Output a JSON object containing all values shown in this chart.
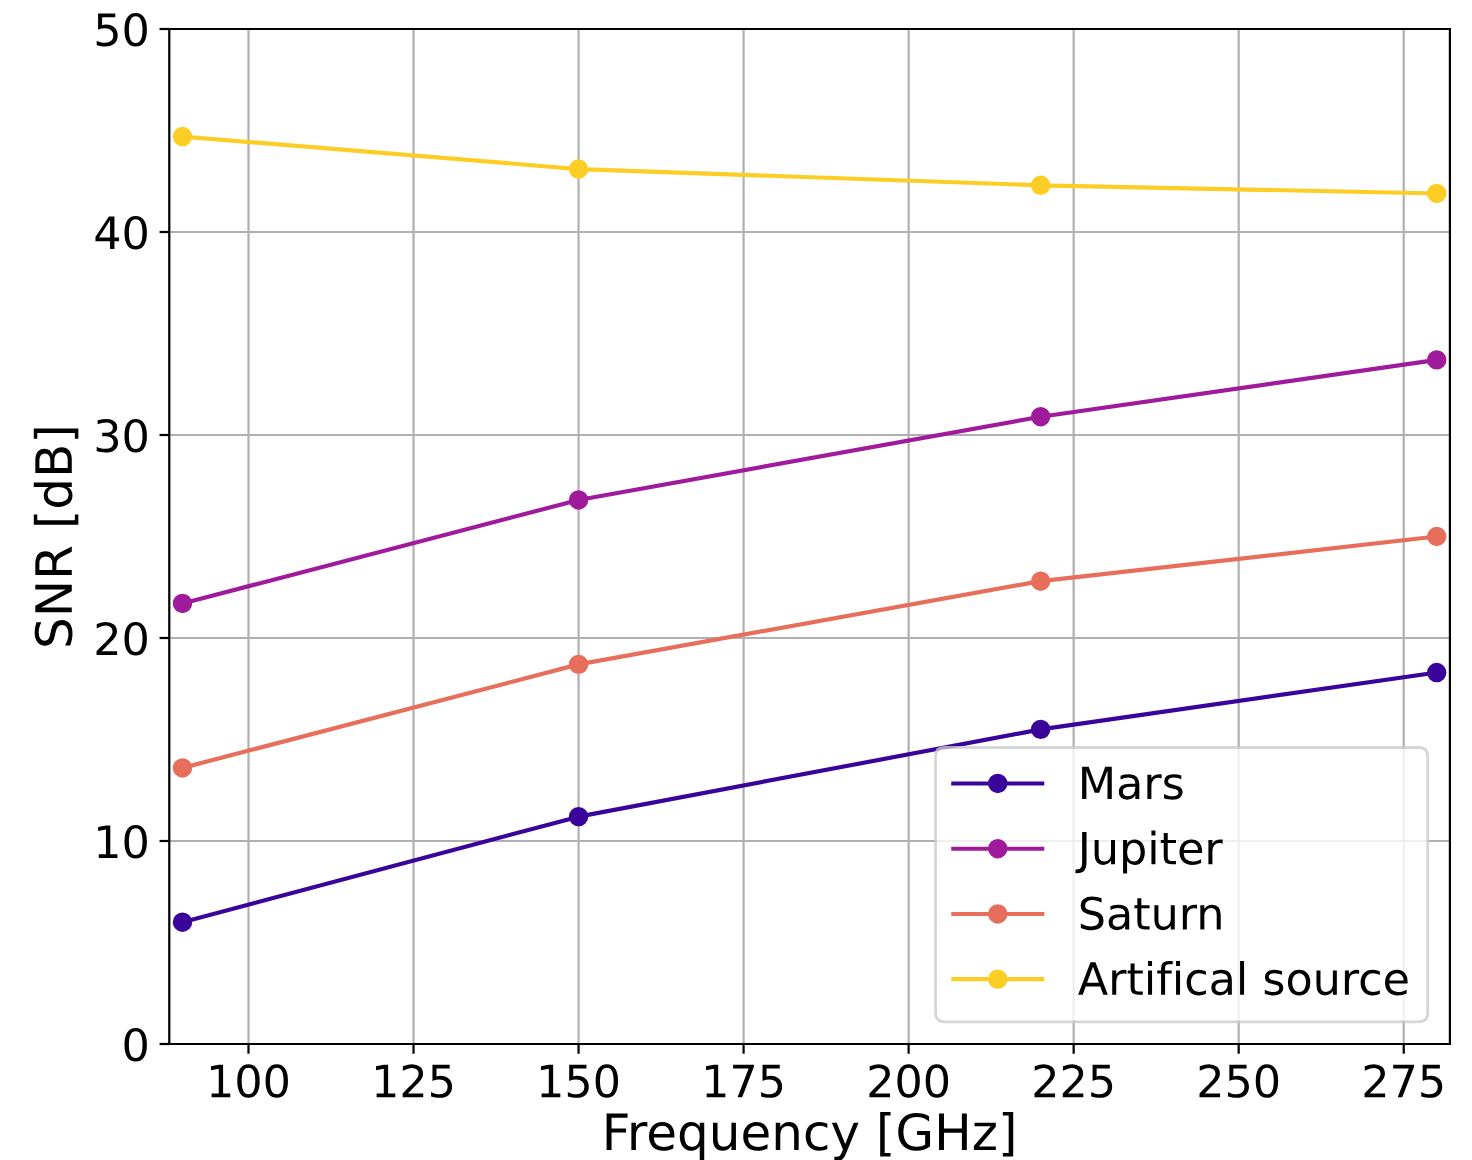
{
  "chart_data": {
    "type": "line",
    "xlabel": "Frequency [GHz]",
    "ylabel": "SNR [dB]",
    "x": [
      90,
      150,
      220,
      280
    ],
    "series": [
      {
        "name": "Mars",
        "color": "#3a049a",
        "values": [
          6.0,
          11.2,
          15.5,
          18.3
        ]
      },
      {
        "name": "Jupiter",
        "color": "#a01a9c",
        "values": [
          21.7,
          26.8,
          30.9,
          33.7
        ]
      },
      {
        "name": "Saturn",
        "color": "#e76e5b",
        "values": [
          13.6,
          18.7,
          22.8,
          25.0
        ]
      },
      {
        "name": "Artifical source",
        "color": "#fcce25",
        "values": [
          44.7,
          43.1,
          42.3,
          41.9
        ]
      }
    ],
    "xlim": [
      88,
      282
    ],
    "xticks": [
      100,
      125,
      150,
      175,
      200,
      225,
      250,
      275
    ],
    "ylim": [
      0,
      50
    ],
    "yticks": [
      0,
      10,
      20,
      30,
      40,
      50
    ],
    "grid": true,
    "legend": "bottom right",
    "marker": "circle",
    "line_style": "solid"
  }
}
